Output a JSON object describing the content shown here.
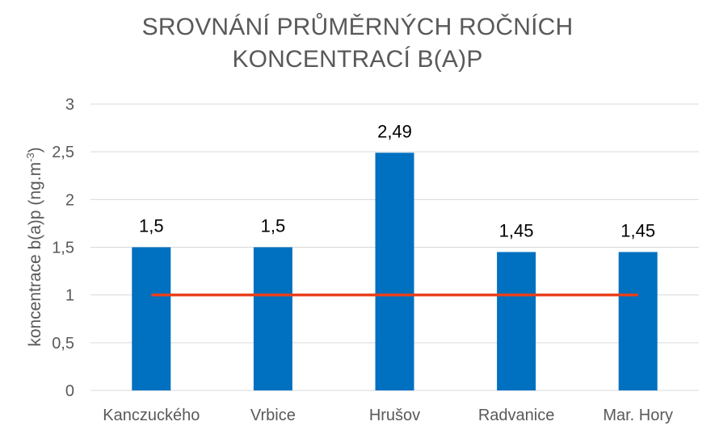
{
  "chart_data": {
    "type": "bar",
    "title_lines": [
      "SROVNÁNÍ PRŮMĚRNÝCH ROČNÍCH",
      "KONCENTRACÍ B(A)P"
    ],
    "xlabel": "",
    "ylabel_main": "koncentrace b(a)p (ng.m",
    "ylabel_sup": "-3",
    "ylabel_end": ")",
    "categories": [
      "Kanczuckého",
      "Vrbice",
      "Hrušov",
      "Radvanice",
      "Mar. Hory"
    ],
    "values": [
      1.5,
      1.5,
      2.49,
      1.45,
      1.45
    ],
    "data_labels": [
      "1,5",
      "1,5",
      "2,49",
      "1,45",
      "1,45"
    ],
    "ylim": [
      0,
      3
    ],
    "yticks": [
      0,
      0.5,
      1,
      1.5,
      2,
      2.5,
      3
    ],
    "ytick_labels": [
      "0",
      "0,5",
      "1",
      "1,5",
      "2",
      "2,5",
      "3"
    ],
    "reference_line": 1,
    "grid": true,
    "colors": {
      "bar": "#0070C0",
      "reference_line": "#E8401C",
      "grid": "#D9D9D9"
    }
  }
}
